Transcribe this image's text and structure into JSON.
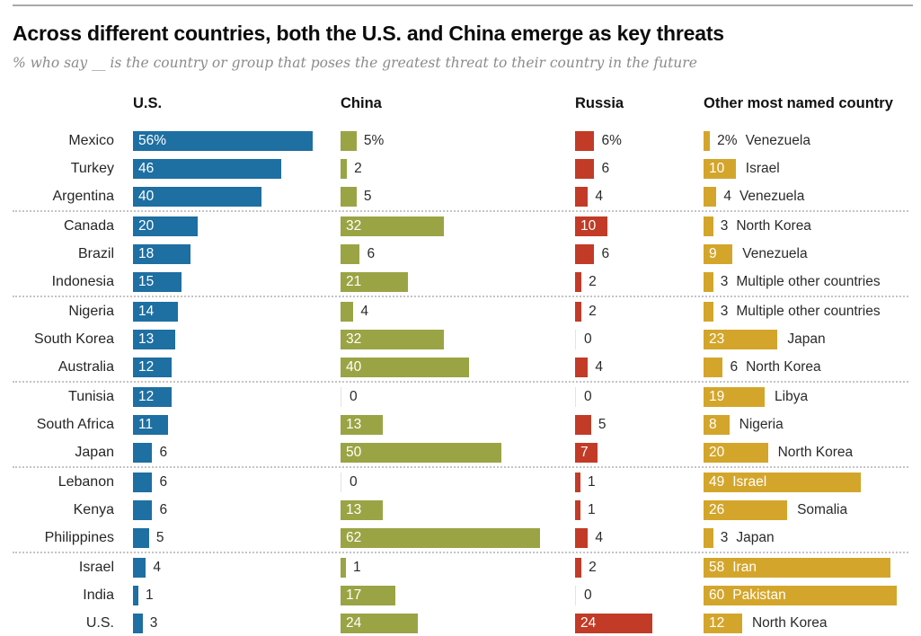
{
  "header": {
    "title": "Across different countries, both the U.S. and China emerge as key threats",
    "subtitle": "% who say __ is the country or group that poses the greatest threat to their country in the future"
  },
  "colors": {
    "us": "#1e6fa2",
    "china": "#9aa444",
    "russia": "#c23b27",
    "other": "#d3a62b",
    "separator": "#c4c4c4",
    "top_rule": "#a9a9a9"
  },
  "chart_data": {
    "type": "bar",
    "unit": "%",
    "title": "Across different countries, both the U.S. and China emerge as key threats",
    "subtitle": "% who say __ is the country or group that poses the greatest threat to their country in the future",
    "columns": [
      "U.S.",
      "China",
      "Russia",
      "Other most named country"
    ],
    "xlim": [
      0,
      62
    ],
    "value_labels_first_row_suffix": "%",
    "groups": [
      [
        {
          "country": "Mexico",
          "us": 56,
          "china": 5,
          "russia": 6,
          "other": 2,
          "other_name": "Venezuela",
          "pct": true
        },
        {
          "country": "Turkey",
          "us": 46,
          "china": 2,
          "russia": 6,
          "other": 10,
          "other_name": "Israel"
        },
        {
          "country": "Argentina",
          "us": 40,
          "china": 5,
          "russia": 4,
          "other": 4,
          "other_name": "Venezuela"
        }
      ],
      [
        {
          "country": "Canada",
          "us": 20,
          "china": 32,
          "russia": 10,
          "other": 3,
          "other_name": "North Korea"
        },
        {
          "country": "Brazil",
          "us": 18,
          "china": 6,
          "russia": 6,
          "other": 9,
          "other_name": "Venezuela"
        },
        {
          "country": "Indonesia",
          "us": 15,
          "china": 21,
          "russia": 2,
          "other": 3,
          "other_name": "Multiple other countries"
        }
      ],
      [
        {
          "country": "Nigeria",
          "us": 14,
          "china": 4,
          "russia": 2,
          "other": 3,
          "other_name": "Multiple other countries"
        },
        {
          "country": "South Korea",
          "us": 13,
          "china": 32,
          "russia": 0,
          "other": 23,
          "other_name": "Japan"
        },
        {
          "country": "Australia",
          "us": 12,
          "china": 40,
          "russia": 4,
          "other": 6,
          "other_name": "North Korea"
        }
      ],
      [
        {
          "country": "Tunisia",
          "us": 12,
          "china": 0,
          "russia": 0,
          "other": 19,
          "other_name": "Libya"
        },
        {
          "country": "South Africa",
          "us": 11,
          "china": 13,
          "russia": 5,
          "other": 8,
          "other_name": "Nigeria"
        },
        {
          "country": "Japan",
          "us": 6,
          "china": 50,
          "russia": 7,
          "other": 20,
          "other_name": "North Korea"
        }
      ],
      [
        {
          "country": "Lebanon",
          "us": 6,
          "china": 0,
          "russia": 1,
          "other": 49,
          "other_name": "Israel"
        },
        {
          "country": "Kenya",
          "us": 6,
          "china": 13,
          "russia": 1,
          "other": 26,
          "other_name": "Somalia"
        },
        {
          "country": "Philippines",
          "us": 5,
          "china": 62,
          "russia": 4,
          "other": 3,
          "other_name": "Japan"
        }
      ],
      [
        {
          "country": "Israel",
          "us": 4,
          "china": 1,
          "russia": 2,
          "other": 58,
          "other_name": "Iran"
        },
        {
          "country": "India",
          "us": 1,
          "china": 17,
          "russia": 0,
          "other": 60,
          "other_name": "Pakistan"
        },
        {
          "country": "U.S.",
          "us": 3,
          "china": 24,
          "russia": 24,
          "other": 12,
          "other_name": "North Korea"
        }
      ]
    ]
  }
}
